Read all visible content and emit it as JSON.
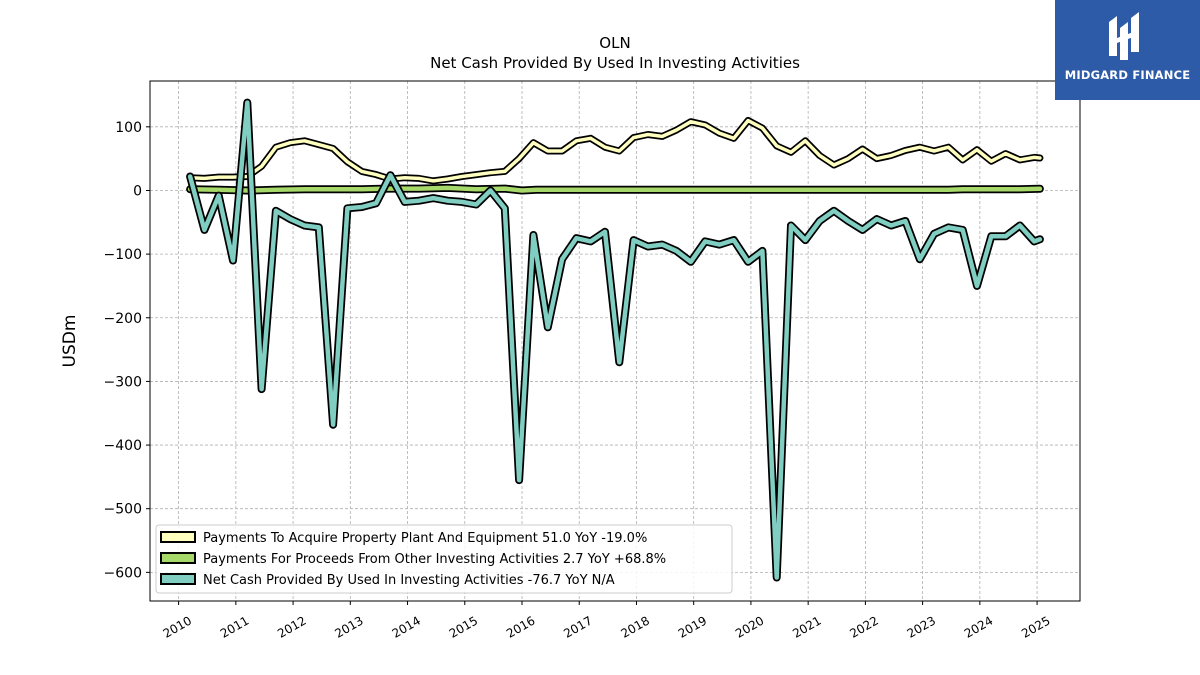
{
  "brand": {
    "name": "MIDGARD FINANCE"
  },
  "chart_data": {
    "type": "line",
    "title": "OLN",
    "subtitle": "Net Cash Provided By Used In Investing Activities",
    "ylabel": "USDm",
    "xlim": [
      2009.5,
      2025.75
    ],
    "ylim": [
      -645,
      172
    ],
    "yticks": [
      100,
      0,
      -100,
      -200,
      -300,
      -400,
      -500,
      -600
    ],
    "ytick_labels": [
      "100",
      "0",
      "−100",
      "−200",
      "−300",
      "−400",
      "−500",
      "−600"
    ],
    "xticks": [
      2010,
      2011,
      2012,
      2013,
      2014,
      2015,
      2016,
      2017,
      2018,
      2019,
      2020,
      2021,
      2022,
      2023,
      2024,
      2025
    ],
    "xtick_labels": [
      "2010",
      "2011",
      "2012",
      "2013",
      "2014",
      "2015",
      "2016",
      "2017",
      "2018",
      "2019",
      "2020",
      "2021",
      "2022",
      "2023",
      "2024",
      "2025"
    ],
    "grid": true,
    "legend_position": "lower-left",
    "series": [
      {
        "name": "Payments To Acquire Property Plant And Equipment  51.0 YoY -19.0%",
        "color": "#ffffbf",
        "x": [
          2010.2,
          2010.45,
          2010.7,
          2010.95,
          2011.2,
          2011.45,
          2011.7,
          2011.95,
          2012.2,
          2012.45,
          2012.7,
          2012.95,
          2013.2,
          2013.45,
          2013.7,
          2013.95,
          2014.2,
          2014.45,
          2014.7,
          2014.95,
          2015.2,
          2015.45,
          2015.7,
          2015.95,
          2016.2,
          2016.45,
          2016.7,
          2016.95,
          2017.2,
          2017.45,
          2017.7,
          2017.95,
          2018.2,
          2018.45,
          2018.7,
          2018.95,
          2019.2,
          2019.45,
          2019.7,
          2019.95,
          2020.2,
          2020.45,
          2020.7,
          2020.95,
          2021.2,
          2021.45,
          2021.7,
          2021.95,
          2022.2,
          2022.45,
          2022.7,
          2022.95,
          2023.2,
          2023.45,
          2023.7,
          2023.95,
          2024.2,
          2024.45,
          2024.7,
          2024.95,
          2025.05
        ],
        "values": [
          20,
          19,
          21,
          21,
          22,
          38,
          68,
          75,
          78,
          72,
          66,
          45,
          30,
          25,
          18,
          20,
          19,
          15,
          18,
          22,
          25,
          28,
          30,
          50,
          75,
          62,
          62,
          78,
          82,
          68,
          62,
          83,
          88,
          85,
          95,
          108,
          103,
          90,
          82,
          110,
          98,
          70,
          60,
          78,
          55,
          40,
          50,
          65,
          50,
          55,
          63,
          68,
          62,
          68,
          48,
          64,
          46,
          58,
          48,
          52,
          51
        ]
      },
      {
        "name": "Payments For Proceeds From Other Investing Activities  2.7 YoY +68.8%",
        "color": "#a6d96a",
        "x": [
          2010.2,
          2010.7,
          2011.2,
          2011.7,
          2012.2,
          2012.7,
          2013.2,
          2013.7,
          2014.2,
          2014.7,
          2015.2,
          2015.7,
          2016.0,
          2016.25,
          2016.7,
          2017.2,
          2017.7,
          2018.2,
          2018.7,
          2019.2,
          2019.7,
          2020.2,
          2020.7,
          2021.2,
          2021.7,
          2022.2,
          2022.7,
          2023.2,
          2023.45,
          2023.7,
          2023.95,
          2024.2,
          2024.45,
          2024.7,
          2024.95,
          2025.05
        ],
        "values": [
          2,
          1,
          0,
          1,
          2,
          2,
          2,
          3,
          3,
          4,
          2,
          3,
          0,
          1,
          1,
          1,
          1,
          1,
          1,
          1,
          1,
          1,
          1,
          1,
          1,
          1,
          1,
          1,
          1,
          2,
          2,
          2,
          2,
          2,
          2.5,
          2.7
        ]
      },
      {
        "name": "Net Cash Provided By Used In Investing Activities  -76.7 YoY N/A",
        "color": "#80cdc1",
        "x": [
          2010.2,
          2010.45,
          2010.7,
          2010.95,
          2011.2,
          2011.45,
          2011.7,
          2011.95,
          2012.2,
          2012.45,
          2012.7,
          2012.95,
          2013.2,
          2013.45,
          2013.7,
          2013.95,
          2014.2,
          2014.45,
          2014.7,
          2014.95,
          2015.2,
          2015.45,
          2015.7,
          2015.95,
          2016.2,
          2016.45,
          2016.7,
          2016.95,
          2017.2,
          2017.45,
          2017.7,
          2017.95,
          2018.2,
          2018.45,
          2018.7,
          2018.95,
          2019.2,
          2019.45,
          2019.7,
          2019.95,
          2020.2,
          2020.45,
          2020.7,
          2020.95,
          2021.2,
          2021.45,
          2021.7,
          2021.95,
          2022.2,
          2022.45,
          2022.7,
          2022.95,
          2023.2,
          2023.45,
          2023.7,
          2023.95,
          2024.2,
          2024.45,
          2024.7,
          2024.95,
          2025.05
        ],
        "values": [
          22,
          -62,
          -8,
          -110,
          138,
          -312,
          -32,
          -45,
          -55,
          -58,
          -368,
          -28,
          -26,
          -20,
          24,
          -18,
          -16,
          -12,
          -16,
          -18,
          -22,
          0,
          -28,
          -455,
          -70,
          -215,
          -108,
          -75,
          -80,
          -65,
          -270,
          -78,
          -88,
          -85,
          -95,
          -112,
          -80,
          -85,
          -78,
          -112,
          -95,
          -608,
          -55,
          -78,
          -48,
          -32,
          -48,
          -62,
          -45,
          -55,
          -48,
          -108,
          -68,
          -58,
          -62,
          -150,
          -72,
          -72,
          -55,
          -80,
          -76.7
        ]
      }
    ]
  }
}
